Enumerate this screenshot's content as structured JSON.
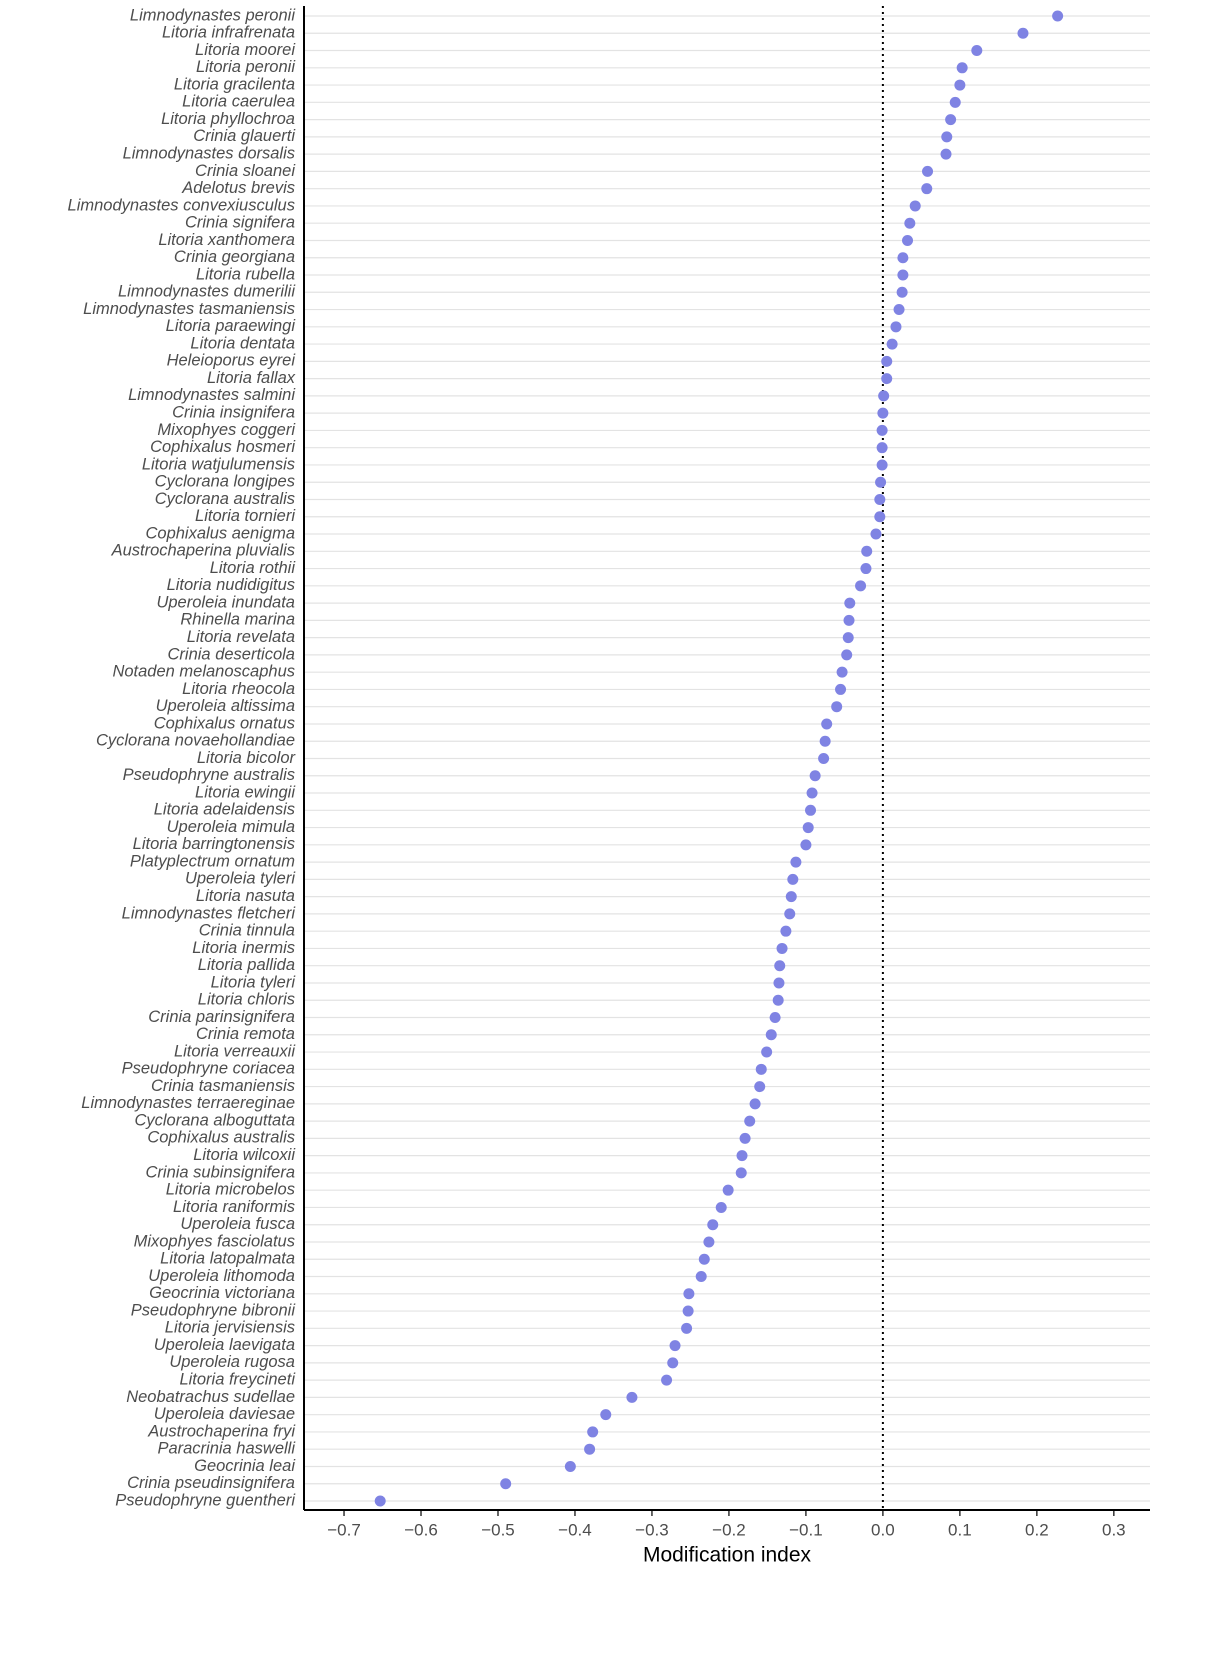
{
  "chart_data": {
    "type": "dot",
    "x_label": "Modification index",
    "color": "#7f83e3",
    "grid": true,
    "reference_line": 0,
    "xlim": [
      -0.752,
      0.347
    ],
    "xticks": [
      {
        "value": -0.7,
        "label": "−0.7"
      },
      {
        "value": -0.6,
        "label": "−0.6"
      },
      {
        "value": -0.5,
        "label": "−0.5"
      },
      {
        "value": -0.4,
        "label": "−0.4"
      },
      {
        "value": -0.3,
        "label": "−0.3"
      },
      {
        "value": -0.2,
        "label": "−0.2"
      },
      {
        "value": -0.1,
        "label": "−0.1"
      },
      {
        "value": 0,
        "label": "0.0"
      },
      0.1,
      0.2,
      0.3
    ],
    "categories": [
      "Limnodynastes peronii",
      "Litoria infrafrenata",
      "Litoria moorei",
      "Litoria peronii",
      "Litoria gracilenta",
      "Litoria caerulea",
      "Litoria phyllochroa",
      "Crinia glauerti",
      "Limnodynastes dorsalis",
      "Crinia sloanei",
      "Adelotus brevis",
      "Limnodynastes convexiusculus",
      "Crinia signifera",
      "Litoria xanthomera",
      "Crinia georgiana",
      "Litoria rubella",
      "Limnodynastes dumerilii",
      "Limnodynastes tasmaniensis",
      "Litoria paraewingi",
      "Litoria dentata",
      "Heleioporus eyrei",
      "Litoria fallax",
      "Limnodynastes salmini",
      "Crinia insignifera",
      "Mixophyes coggeri",
      "Cophixalus hosmeri",
      "Litoria watjulumensis",
      "Cyclorana longipes",
      "Cyclorana australis",
      "Litoria tornieri",
      "Cophixalus aenigma",
      "Austrochaperina pluvialis",
      "Litoria rothii",
      "Litoria nudidigitus",
      "Uperoleia inundata",
      "Rhinella marina",
      "Litoria revelata",
      "Crinia deserticola",
      "Notaden melanoscaphus",
      "Litoria rheocola",
      "Uperoleia altissima",
      "Cophixalus ornatus",
      "Cyclorana novaehollandiae",
      "Litoria bicolor",
      "Pseudophryne australis",
      "Litoria ewingii",
      "Litoria adelaidensis",
      "Uperoleia mimula",
      "Litoria barringtonensis",
      "Platyplectrum ornatum",
      "Uperoleia tyleri",
      "Litoria nasuta",
      "Limnodynastes fletcheri",
      "Crinia tinnula",
      "Litoria inermis",
      "Litoria pallida",
      "Litoria tyleri",
      "Litoria chloris",
      "Crinia parinsignifera",
      "Crinia remota",
      "Litoria verreauxii",
      "Pseudophryne coriacea",
      "Crinia tasmaniensis",
      "Limnodynastes terraereginae",
      "Cyclorana alboguttata",
      "Cophixalus australis",
      "Litoria wilcoxii",
      "Crinia subinsignifera",
      "Litoria microbelos",
      "Litoria raniformis",
      "Uperoleia fusca",
      "Mixophyes fasciolatus",
      "Litoria latopalmata",
      "Uperoleia lithomoda",
      "Geocrinia victoriana",
      "Pseudophryne bibronii",
      "Litoria jervisiensis",
      "Uperoleia laevigata",
      "Uperoleia rugosa",
      "Litoria freycineti",
      "Neobatrachus sudellae",
      "Uperoleia daviesae",
      "Austrochaperina fryi",
      "Paracrinia haswelli",
      "Geocrinia leai",
      "Crinia pseudinsignifera",
      "Pseudophryne guentheri"
    ],
    "values": [
      0.227,
      0.182,
      0.122,
      0.103,
      0.1,
      0.094,
      0.088,
      0.083,
      0.082,
      0.058,
      0.057,
      0.042,
      0.035,
      0.032,
      0.026,
      0.026,
      0.025,
      0.021,
      0.017,
      0.012,
      0.005,
      0.005,
      0.001,
      0.0,
      -0.001,
      -0.001,
      -0.001,
      -0.003,
      -0.004,
      -0.004,
      -0.009,
      -0.021,
      -0.022,
      -0.029,
      -0.043,
      -0.044,
      -0.045,
      -0.047,
      -0.053,
      -0.055,
      -0.06,
      -0.073,
      -0.075,
      -0.077,
      -0.088,
      -0.092,
      -0.094,
      -0.097,
      -0.1,
      -0.113,
      -0.117,
      -0.119,
      -0.121,
      -0.126,
      -0.131,
      -0.134,
      -0.135,
      -0.136,
      -0.14,
      -0.145,
      -0.151,
      -0.158,
      -0.16,
      -0.166,
      -0.173,
      -0.179,
      -0.183,
      -0.184,
      -0.201,
      -0.21,
      -0.221,
      -0.226,
      -0.232,
      -0.236,
      -0.252,
      -0.253,
      -0.255,
      -0.27,
      -0.273,
      -0.281,
      -0.326,
      -0.36,
      -0.377,
      -0.381,
      -0.406,
      -0.49,
      -0.653
    ]
  }
}
